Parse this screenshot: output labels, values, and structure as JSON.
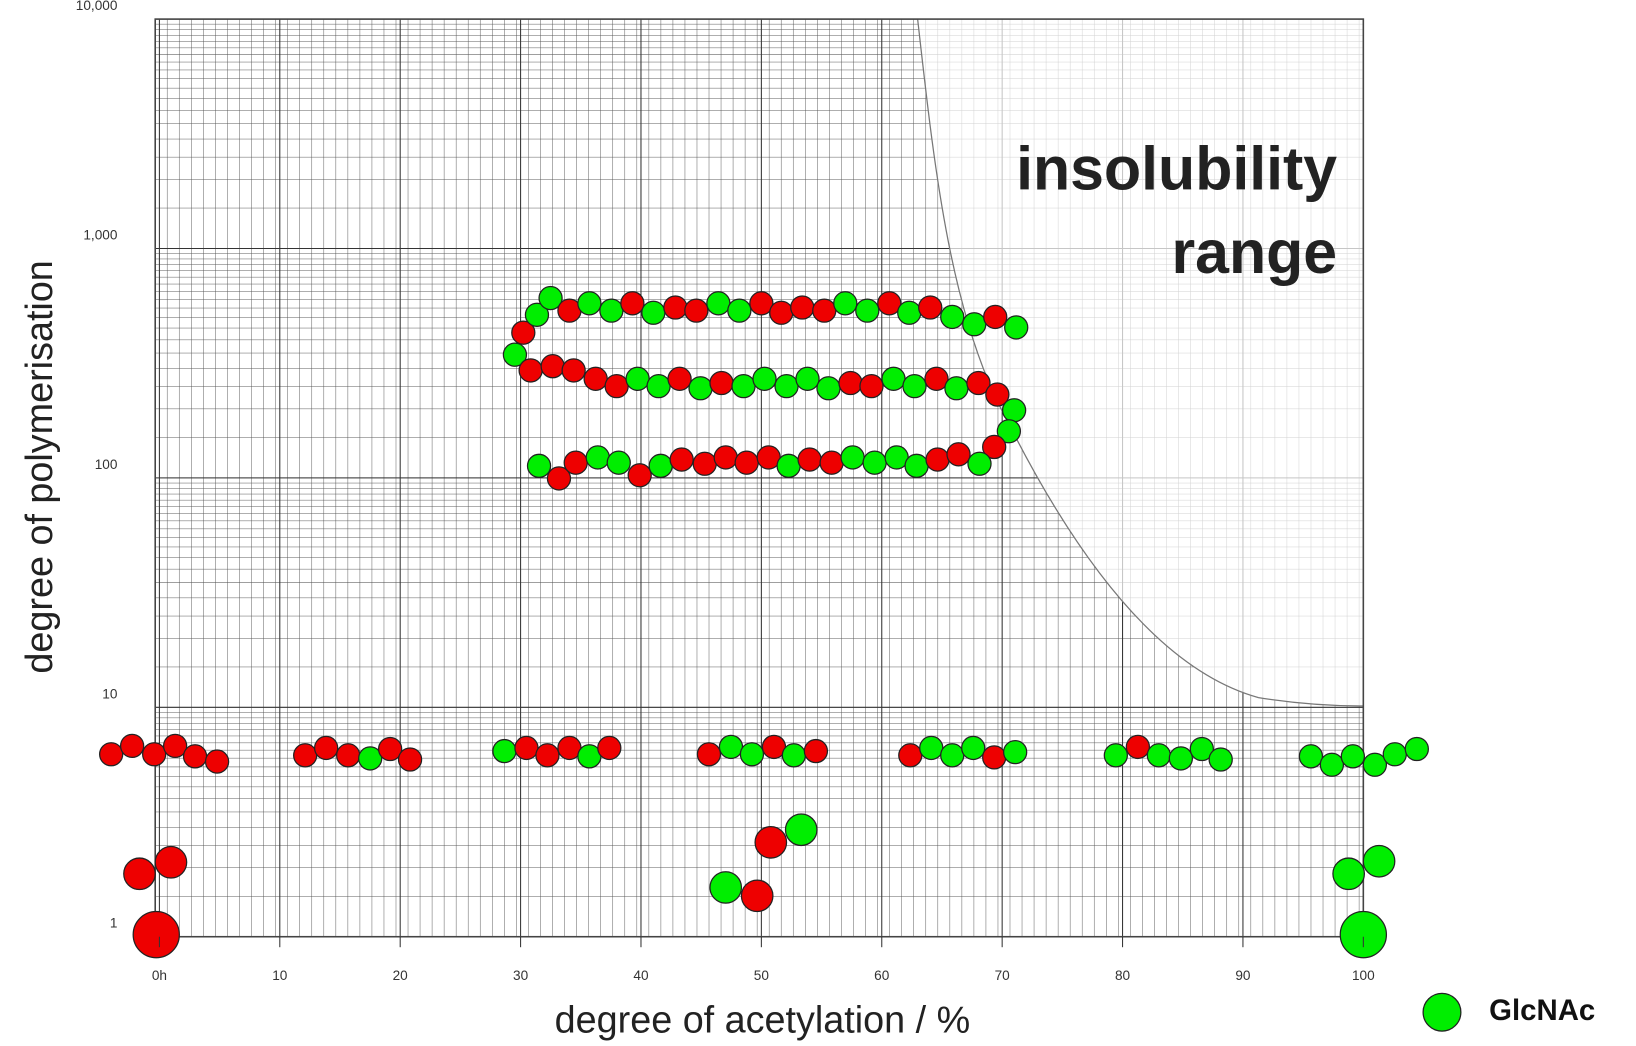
{
  "chart_data": {
    "type": "scatter",
    "x_label": "degree of acetylation / %",
    "y_label": "degree of polymerisation",
    "xlim": [
      0,
      100
    ],
    "xticks": [
      {
        "value": 0,
        "label": "0h"
      },
      10,
      20,
      30,
      40,
      50,
      60,
      70,
      80,
      90,
      100
    ],
    "ylim": [
      1,
      10000
    ],
    "log_y": true,
    "yticks": [
      1,
      10,
      100,
      {
        "value": 1000,
        "label": "1,000"
      },
      {
        "value": 10000,
        "label": "10,000"
      }
    ],
    "grid": true,
    "annotations": [
      "insolubility",
      "range"
    ],
    "legend": [
      {
        "label": "GlcNAc",
        "color": "#00ee00"
      }
    ]
  }
}
